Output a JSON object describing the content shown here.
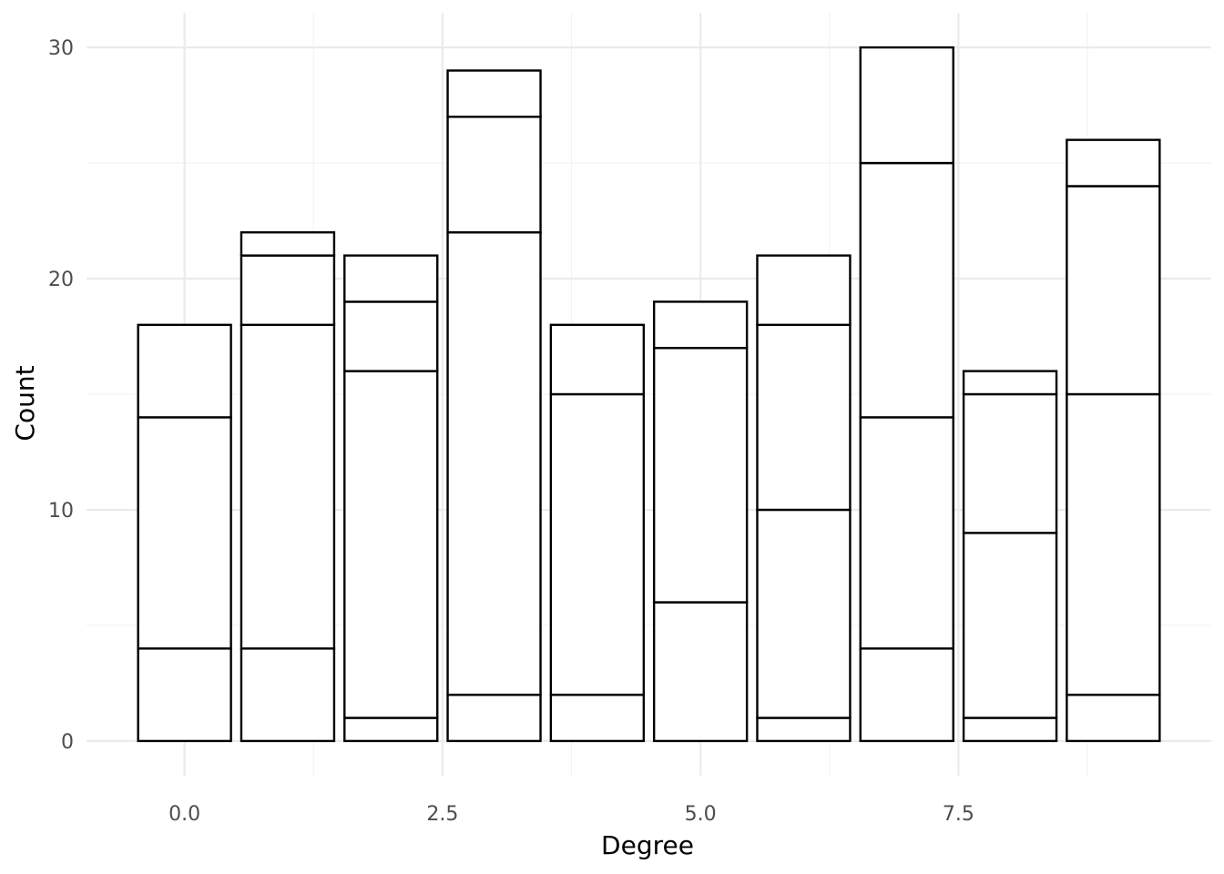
{
  "chart_data": {
    "type": "bar",
    "stacked": true,
    "title": "",
    "xlabel": "Degree",
    "ylabel": "Count",
    "xlim": [
      -0.95,
      9.95
    ],
    "ylim": [
      -1.5,
      31.5
    ],
    "x_ticks": [
      0.0,
      2.5,
      5.0,
      7.5
    ],
    "x_tick_labels": [
      "0.0",
      "2.5",
      "5.0",
      "7.5"
    ],
    "y_ticks": [
      0,
      10,
      20,
      30
    ],
    "y_tick_labels": [
      "0",
      "10",
      "20",
      "30"
    ],
    "x": [
      0,
      1,
      2,
      3,
      4,
      5,
      6,
      7,
      8,
      9
    ],
    "bar_width": 0.9,
    "stack_boundaries": [
      [
        4,
        14,
        18
      ],
      [
        4,
        18,
        21,
        22
      ],
      [
        1,
        16,
        19,
        21
      ],
      [
        2,
        22,
        27,
        29
      ],
      [
        2,
        15,
        18
      ],
      [
        6,
        17,
        19
      ],
      [
        1,
        10,
        18,
        21
      ],
      [
        4,
        14,
        25,
        30
      ],
      [
        1,
        9,
        15,
        16
      ],
      [
        2,
        15,
        24,
        26
      ]
    ],
    "totals": [
      18,
      22,
      21,
      29,
      18,
      19,
      21,
      30,
      16,
      26
    ],
    "grid": true,
    "fill_color": "#ffffff",
    "outline_color": "#000000",
    "grid_color": "#ebebeb"
  }
}
